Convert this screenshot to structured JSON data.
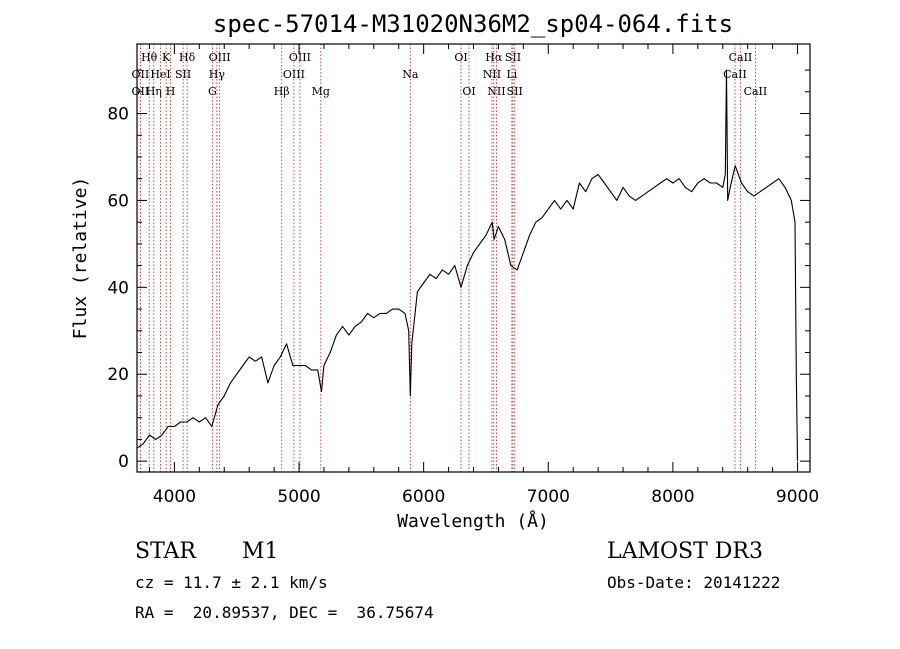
{
  "chart_data": {
    "type": "line",
    "title": "spec-57014-M31020N36M2_sp04-064.fits",
    "xlabel": "Wavelength (Å)",
    "ylabel": "Flux (relative)",
    "xlim": [
      3700,
      9100
    ],
    "ylim": [
      -2.5,
      96
    ],
    "x_ticks": [
      4000,
      5000,
      6000,
      7000,
      8000,
      9000
    ],
    "y_ticks": [
      0,
      20,
      40,
      60,
      80
    ],
    "grid": false,
    "series": [
      {
        "name": "",
        "color": "#000000",
        "points": [
          [
            3700,
            3
          ],
          [
            3750,
            4
          ],
          [
            3800,
            6
          ],
          [
            3850,
            5
          ],
          [
            3900,
            6
          ],
          [
            3950,
            8
          ],
          [
            4000,
            8
          ],
          [
            4050,
            9
          ],
          [
            4100,
            9
          ],
          [
            4150,
            10
          ],
          [
            4200,
            9
          ],
          [
            4250,
            10
          ],
          [
            4300,
            8
          ],
          [
            4350,
            13
          ],
          [
            4400,
            15
          ],
          [
            4450,
            18
          ],
          [
            4500,
            20
          ],
          [
            4550,
            22
          ],
          [
            4600,
            24
          ],
          [
            4650,
            23
          ],
          [
            4700,
            24
          ],
          [
            4750,
            18
          ],
          [
            4800,
            22
          ],
          [
            4850,
            24
          ],
          [
            4900,
            27
          ],
          [
            4950,
            22
          ],
          [
            5000,
            22
          ],
          [
            5050,
            22
          ],
          [
            5100,
            21
          ],
          [
            5150,
            21
          ],
          [
            5180,
            16
          ],
          [
            5200,
            22
          ],
          [
            5250,
            25
          ],
          [
            5300,
            29
          ],
          [
            5350,
            31
          ],
          [
            5400,
            29
          ],
          [
            5450,
            31
          ],
          [
            5500,
            32
          ],
          [
            5550,
            34
          ],
          [
            5600,
            33
          ],
          [
            5650,
            34
          ],
          [
            5700,
            34
          ],
          [
            5750,
            35
          ],
          [
            5800,
            35
          ],
          [
            5850,
            34
          ],
          [
            5880,
            30
          ],
          [
            5893,
            15
          ],
          [
            5905,
            27
          ],
          [
            5950,
            39
          ],
          [
            6000,
            41
          ],
          [
            6050,
            43
          ],
          [
            6100,
            42
          ],
          [
            6150,
            44
          ],
          [
            6200,
            43
          ],
          [
            6250,
            45
          ],
          [
            6300,
            40
          ],
          [
            6350,
            45
          ],
          [
            6400,
            48
          ],
          [
            6450,
            50
          ],
          [
            6500,
            52
          ],
          [
            6550,
            55
          ],
          [
            6565,
            51
          ],
          [
            6600,
            54
          ],
          [
            6650,
            51
          ],
          [
            6700,
            45
          ],
          [
            6750,
            44
          ],
          [
            6800,
            48
          ],
          [
            6850,
            52
          ],
          [
            6900,
            55
          ],
          [
            6950,
            56
          ],
          [
            7000,
            58
          ],
          [
            7050,
            60
          ],
          [
            7100,
            58
          ],
          [
            7150,
            60
          ],
          [
            7200,
            58
          ],
          [
            7250,
            64
          ],
          [
            7300,
            62
          ],
          [
            7350,
            65
          ],
          [
            7400,
            66
          ],
          [
            7450,
            64
          ],
          [
            7500,
            62
          ],
          [
            7550,
            60
          ],
          [
            7600,
            63
          ],
          [
            7650,
            61
          ],
          [
            7700,
            60
          ],
          [
            7750,
            61
          ],
          [
            7800,
            62
          ],
          [
            7850,
            63
          ],
          [
            7900,
            64
          ],
          [
            7950,
            65
          ],
          [
            8000,
            64
          ],
          [
            8050,
            65
          ],
          [
            8100,
            63
          ],
          [
            8150,
            62
          ],
          [
            8200,
            64
          ],
          [
            8250,
            65
          ],
          [
            8300,
            64
          ],
          [
            8350,
            64
          ],
          [
            8400,
            63
          ],
          [
            8420,
            66
          ],
          [
            8430,
            90
          ],
          [
            8440,
            60
          ],
          [
            8460,
            63
          ],
          [
            8500,
            68
          ],
          [
            8550,
            64
          ],
          [
            8600,
            62
          ],
          [
            8650,
            61
          ],
          [
            8700,
            62
          ],
          [
            8750,
            63
          ],
          [
            8800,
            64
          ],
          [
            8850,
            65
          ],
          [
            8900,
            63
          ],
          [
            8950,
            60
          ],
          [
            8980,
            55
          ],
          [
            8990,
            20
          ],
          [
            9000,
            0
          ]
        ]
      }
    ],
    "line_markers": {
      "color": "#b22222",
      "lines": [
        {
          "label": "Hθ",
          "wavelength": 3798,
          "row": 0
        },
        {
          "label": "OII",
          "wavelength": 3727,
          "row": 1
        },
        {
          "label": "OII",
          "wavelength": 3727,
          "row": 2
        },
        {
          "label": "K",
          "wavelength": 3934,
          "row": 0
        },
        {
          "label": "HeI",
          "wavelength": 3889,
          "row": 1
        },
        {
          "label": "Hη",
          "wavelength": 3835,
          "row": 2
        },
        {
          "label": "Hδ",
          "wavelength": 4102,
          "row": 0
        },
        {
          "label": "SII",
          "wavelength": 4070,
          "row": 1
        },
        {
          "label": "H",
          "wavelength": 3969,
          "row": 2
        },
        {
          "label": "OIII",
          "wavelength": 4363,
          "row": 0
        },
        {
          "label": "Hγ",
          "wavelength": 4341,
          "row": 1
        },
        {
          "label": "G",
          "wavelength": 4305,
          "row": 2
        },
        {
          "label": "OIII",
          "wavelength": 5007,
          "row": 0
        },
        {
          "label": "OIII",
          "wavelength": 4959,
          "row": 1
        },
        {
          "label": "Hβ",
          "wavelength": 4861,
          "row": 2
        },
        {
          "label": "Mg",
          "wavelength": 5175,
          "row": 2
        },
        {
          "label": "Na",
          "wavelength": 5893,
          "row": 1
        },
        {
          "label": "OI",
          "wavelength": 6300,
          "row": 0
        },
        {
          "label": "OI",
          "wavelength": 6364,
          "row": 2
        },
        {
          "label": "Hα",
          "wavelength": 6563,
          "row": 0
        },
        {
          "label": "SII",
          "wavelength": 6717,
          "row": 0
        },
        {
          "label": "NII",
          "wavelength": 6548,
          "row": 1
        },
        {
          "label": "Li",
          "wavelength": 6708,
          "row": 1
        },
        {
          "label": "NII",
          "wavelength": 6584,
          "row": 2
        },
        {
          "label": "SII",
          "wavelength": 6731,
          "row": 2
        },
        {
          "label": "CaII",
          "wavelength": 8542,
          "row": 0
        },
        {
          "label": "CaII",
          "wavelength": 8498,
          "row": 1
        },
        {
          "label": "CaII",
          "wavelength": 8662,
          "row": 2
        }
      ]
    }
  },
  "info": {
    "object_class": "STAR",
    "subclass": "M1",
    "survey": "LAMOST DR3",
    "redshift_text": "cz = 11.7 ± 2.1 km/s",
    "obs_date_text": "Obs-Date: 20141222",
    "coords_text": "RA =  20.89537, DEC =  36.75674"
  }
}
